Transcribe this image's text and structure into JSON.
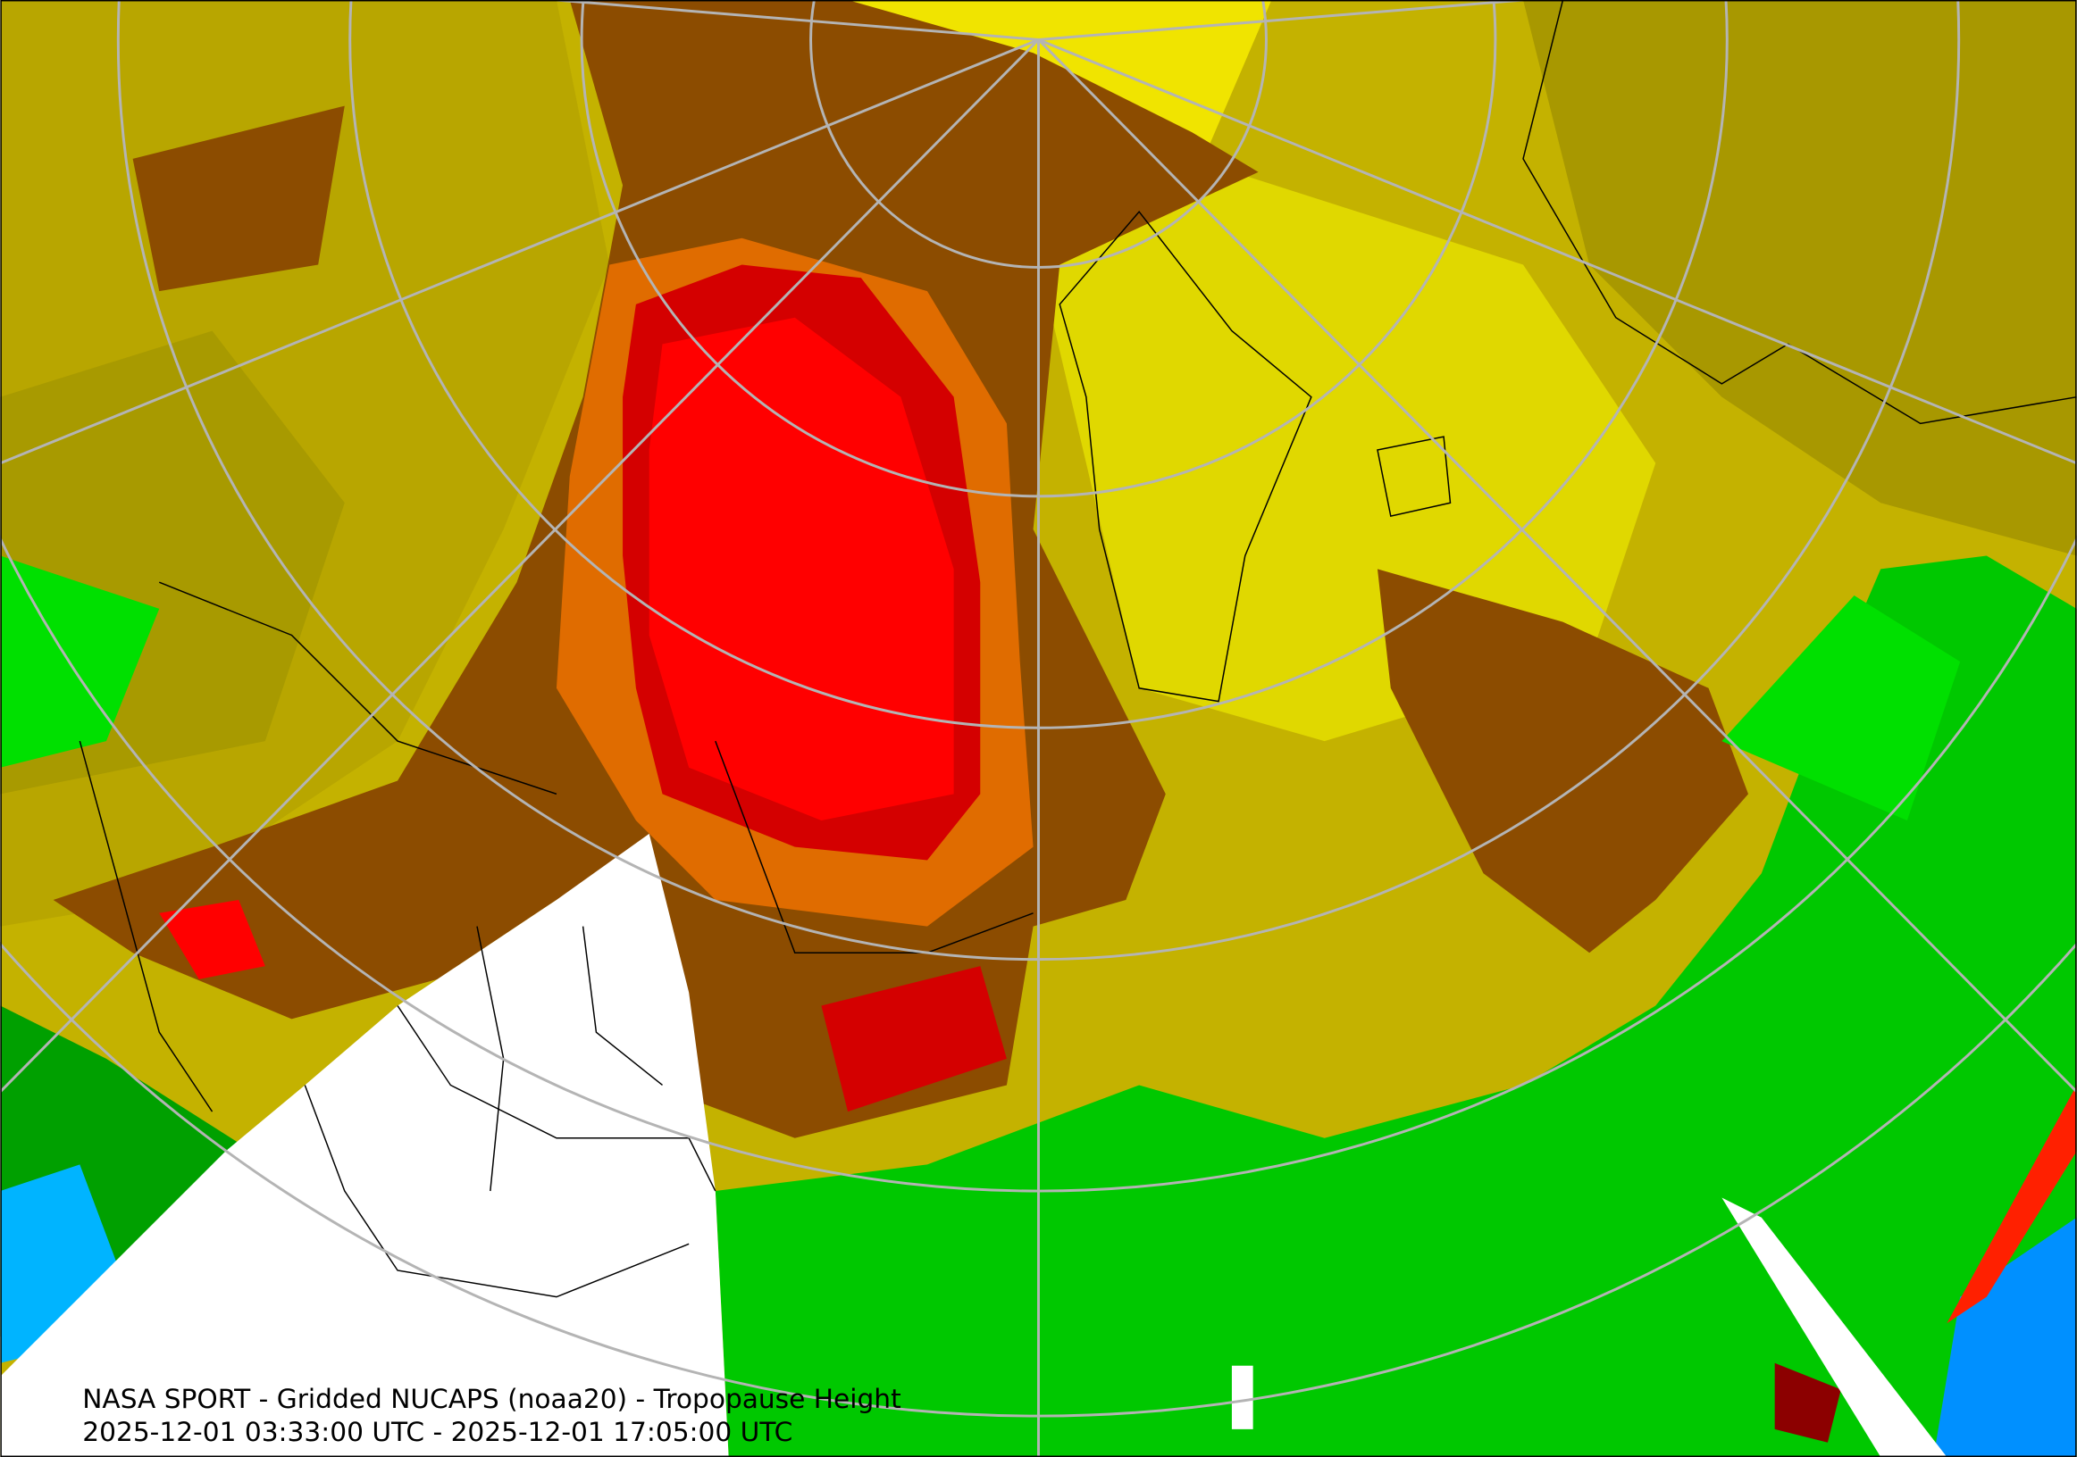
{
  "caption": {
    "line1": "NASA SPORT - Gridded NUCAPS (noaa20) - Tropopause Height",
    "line2": "2025-12-01 03:33:00 UTC - 2025-12-01 17:05:00 UTC"
  }
}
